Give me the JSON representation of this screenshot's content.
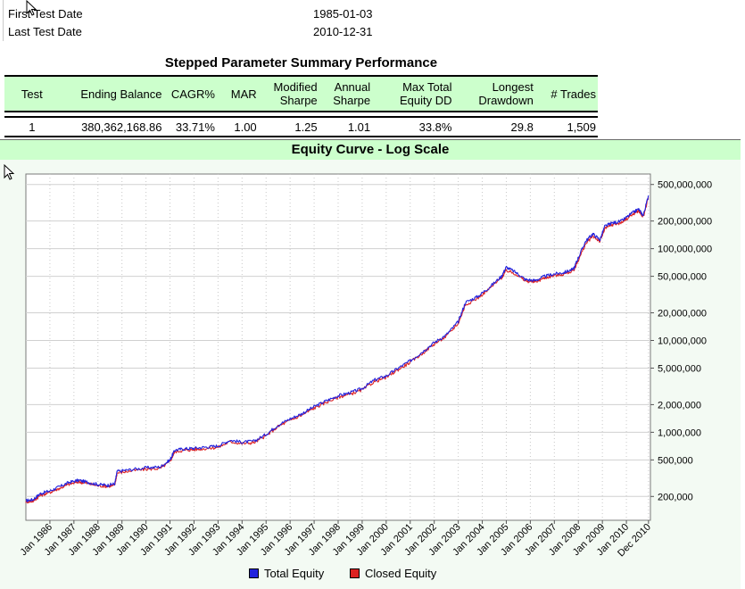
{
  "info": {
    "first_label": "First Test Date",
    "first_value": "1985-01-03",
    "last_label": "Last Test Date",
    "last_value": "2010-12-31"
  },
  "summary": {
    "title": "Stepped Parameter Summary Performance",
    "headers": [
      "Test",
      "Ending Balance",
      "CAGR%",
      "MAR",
      "Modified Sharpe",
      "Annual Sharpe",
      "Max Total Equity DD",
      "Longest Drawdown",
      "# Trades"
    ],
    "header_lines": [
      [
        "Test"
      ],
      [
        "Ending Balance"
      ],
      [
        "CAGR%"
      ],
      [
        "MAR"
      ],
      [
        "Modified",
        "Sharpe"
      ],
      [
        "Annual",
        "Sharpe"
      ],
      [
        "Max Total",
        "Equity DD"
      ],
      [
        "Longest",
        "Drawdown"
      ],
      [
        "# Trades"
      ]
    ],
    "row": [
      "1",
      "380,362,168.86",
      "33.71%",
      "1.00",
      "1.25",
      "1.01",
      "33.8%",
      "29.8",
      "1,509"
    ]
  },
  "chart_data": {
    "type": "line",
    "title": "Equity Curve - Log Scale",
    "yscale": "log",
    "ylim": [
      110000,
      650000000
    ],
    "xlim": [
      1985.0,
      2011.0
    ],
    "y_ticks": [
      {
        "value": 200000,
        "label": "200,000"
      },
      {
        "value": 500000,
        "label": "500,000"
      },
      {
        "value": 1000000,
        "label": "1,000,000"
      },
      {
        "value": 2000000,
        "label": "2,000,000"
      },
      {
        "value": 5000000,
        "label": "5,000,000"
      },
      {
        "value": 10000000,
        "label": "10,000,000"
      },
      {
        "value": 20000000,
        "label": "20,000,000"
      },
      {
        "value": 50000000,
        "label": "50,000,000"
      },
      {
        "value": 100000000,
        "label": "100,000,000"
      },
      {
        "value": 200000000,
        "label": "200,000,000"
      },
      {
        "value": 500000000,
        "label": "500,000,000"
      }
    ],
    "x_ticks": [
      {
        "value": 1986.0,
        "label": "Jan 1986"
      },
      {
        "value": 1987.0,
        "label": "Jan 1987"
      },
      {
        "value": 1988.0,
        "label": "Jan 1988"
      },
      {
        "value": 1989.0,
        "label": "Jan 1989"
      },
      {
        "value": 1990.0,
        "label": "Jan 1990"
      },
      {
        "value": 1991.0,
        "label": "Jan 1991"
      },
      {
        "value": 1992.0,
        "label": "Jan 1992"
      },
      {
        "value": 1993.0,
        "label": "Jan 1993"
      },
      {
        "value": 1994.0,
        "label": "Jan 1994"
      },
      {
        "value": 1995.0,
        "label": "Jan 1995"
      },
      {
        "value": 1996.0,
        "label": "Jan 1996"
      },
      {
        "value": 1997.0,
        "label": "Jan 1997"
      },
      {
        "value": 1998.0,
        "label": "Jan 1998"
      },
      {
        "value": 1999.0,
        "label": "Jan 1999"
      },
      {
        "value": 2000.0,
        "label": "Jan 2000"
      },
      {
        "value": 2001.0,
        "label": "Jan 2001"
      },
      {
        "value": 2002.0,
        "label": "Jan 2002"
      },
      {
        "value": 2003.0,
        "label": "Jan 2003"
      },
      {
        "value": 2004.0,
        "label": "Jan 2004"
      },
      {
        "value": 2005.0,
        "label": "Jan 2005"
      },
      {
        "value": 2006.0,
        "label": "Jan 2006"
      },
      {
        "value": 2007.0,
        "label": "Jan 2007"
      },
      {
        "value": 2008.0,
        "label": "Jan 2008"
      },
      {
        "value": 2009.0,
        "label": "Jan 2009"
      },
      {
        "value": 2010.0,
        "label": "Jan 2010"
      },
      {
        "value": 2010.92,
        "label": "Dec 2010"
      }
    ],
    "grid": true,
    "legend": "bottom-center",
    "series": [
      {
        "name": "Total Equity",
        "color": "#2222dd",
        "points": [
          [
            1985.0,
            180000
          ],
          [
            1985.3,
            185000
          ],
          [
            1985.6,
            215000
          ],
          [
            1986.0,
            230000
          ],
          [
            1986.4,
            255000
          ],
          [
            1986.8,
            285000
          ],
          [
            1987.2,
            300000
          ],
          [
            1987.6,
            285000
          ],
          [
            1988.0,
            270000
          ],
          [
            1988.4,
            265000
          ],
          [
            1988.7,
            275000
          ],
          [
            1988.8,
            375000
          ],
          [
            1989.3,
            390000
          ],
          [
            1990.0,
            410000
          ],
          [
            1990.6,
            420000
          ],
          [
            1991.0,
            500000
          ],
          [
            1991.2,
            640000
          ],
          [
            1991.6,
            660000
          ],
          [
            1992.0,
            670000
          ],
          [
            1992.5,
            690000
          ],
          [
            1993.0,
            710000
          ],
          [
            1993.5,
            820000
          ],
          [
            1994.0,
            780000
          ],
          [
            1994.5,
            800000
          ],
          [
            1995.0,
            950000
          ],
          [
            1995.5,
            1200000
          ],
          [
            1996.0,
            1400000
          ],
          [
            1996.5,
            1600000
          ],
          [
            1997.0,
            1900000
          ],
          [
            1997.5,
            2200000
          ],
          [
            1998.0,
            2500000
          ],
          [
            1998.5,
            2700000
          ],
          [
            1999.0,
            3000000
          ],
          [
            1999.5,
            3700000
          ],
          [
            2000.0,
            4100000
          ],
          [
            2000.5,
            5000000
          ],
          [
            2001.0,
            6000000
          ],
          [
            2001.5,
            7500000
          ],
          [
            2002.0,
            9500000
          ],
          [
            2002.5,
            11500000
          ],
          [
            2003.0,
            16000000
          ],
          [
            2003.3,
            26000000
          ],
          [
            2003.8,
            30000000
          ],
          [
            2004.3,
            38000000
          ],
          [
            2004.8,
            50000000
          ],
          [
            2005.0,
            63000000
          ],
          [
            2005.4,
            55000000
          ],
          [
            2005.8,
            46000000
          ],
          [
            2006.2,
            45000000
          ],
          [
            2006.6,
            50000000
          ],
          [
            2007.0,
            53000000
          ],
          [
            2007.4,
            55000000
          ],
          [
            2007.8,
            60000000
          ],
          [
            2008.0,
            80000000
          ],
          [
            2008.3,
            120000000
          ],
          [
            2008.6,
            145000000
          ],
          [
            2008.9,
            125000000
          ],
          [
            2009.1,
            175000000
          ],
          [
            2009.4,
            190000000
          ],
          [
            2009.8,
            200000000
          ],
          [
            2010.2,
            240000000
          ],
          [
            2010.5,
            270000000
          ],
          [
            2010.7,
            230000000
          ],
          [
            2010.92,
            380000000
          ]
        ]
      },
      {
        "name": "Closed Equity",
        "color": "#dd2222",
        "points": [
          [
            1985.0,
            175000
          ],
          [
            1985.3,
            178000
          ],
          [
            1985.6,
            205000
          ],
          [
            1986.0,
            222000
          ],
          [
            1986.4,
            245000
          ],
          [
            1986.8,
            272000
          ],
          [
            1987.2,
            288000
          ],
          [
            1987.6,
            276000
          ],
          [
            1988.0,
            262000
          ],
          [
            1988.4,
            258000
          ],
          [
            1988.7,
            265000
          ],
          [
            1988.8,
            360000
          ],
          [
            1989.3,
            377000
          ],
          [
            1990.0,
            396000
          ],
          [
            1990.6,
            405000
          ],
          [
            1991.0,
            480000
          ],
          [
            1991.2,
            615000
          ],
          [
            1991.6,
            637000
          ],
          [
            1992.0,
            647000
          ],
          [
            1992.5,
            666000
          ],
          [
            1993.0,
            686000
          ],
          [
            1993.5,
            790000
          ],
          [
            1994.0,
            754000
          ],
          [
            1994.5,
            772000
          ],
          [
            1995.0,
            915000
          ],
          [
            1995.5,
            1155000
          ],
          [
            1996.0,
            1350000
          ],
          [
            1996.5,
            1545000
          ],
          [
            1997.0,
            1830000
          ],
          [
            1997.5,
            2120000
          ],
          [
            1998.0,
            2410000
          ],
          [
            1998.5,
            2600000
          ],
          [
            1999.0,
            2890000
          ],
          [
            1999.5,
            3560000
          ],
          [
            2000.0,
            3950000
          ],
          [
            2000.5,
            4820000
          ],
          [
            2001.0,
            5780000
          ],
          [
            2001.5,
            7220000
          ],
          [
            2002.0,
            9150000
          ],
          [
            2002.5,
            11080000
          ],
          [
            2003.0,
            15400000
          ],
          [
            2003.3,
            24500000
          ],
          [
            2003.8,
            28800000
          ],
          [
            2004.3,
            36600000
          ],
          [
            2004.8,
            48100000
          ],
          [
            2005.0,
            58000000
          ],
          [
            2005.4,
            52900000
          ],
          [
            2005.8,
            44300000
          ],
          [
            2006.2,
            43300000
          ],
          [
            2006.6,
            48100000
          ],
          [
            2007.0,
            51000000
          ],
          [
            2007.4,
            52900000
          ],
          [
            2007.8,
            57700000
          ],
          [
            2008.0,
            75000000
          ],
          [
            2008.3,
            112000000
          ],
          [
            2008.6,
            137000000
          ],
          [
            2008.9,
            120000000
          ],
          [
            2009.1,
            165000000
          ],
          [
            2009.4,
            182000000
          ],
          [
            2009.8,
            192000000
          ],
          [
            2010.2,
            231000000
          ],
          [
            2010.5,
            258000000
          ],
          [
            2010.7,
            222000000
          ],
          [
            2010.92,
            360000000
          ]
        ]
      }
    ]
  }
}
